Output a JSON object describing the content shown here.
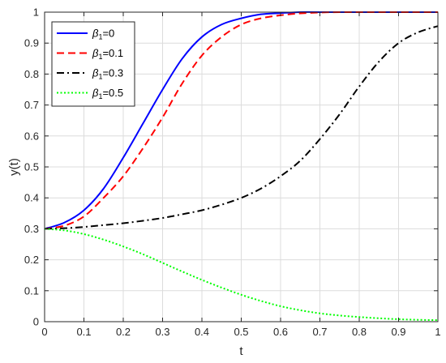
{
  "chart_data": {
    "type": "line",
    "title": "",
    "xlabel": "t",
    "ylabel": "y(t)",
    "xlim": [
      0,
      1
    ],
    "ylim": [
      0,
      1
    ],
    "xticks": [
      "0",
      "0.1",
      "0.2",
      "0.3",
      "0.4",
      "0.5",
      "0.6",
      "0.7",
      "0.8",
      "0.9",
      "1"
    ],
    "yticks": [
      "0",
      "0.1",
      "0.2",
      "0.3",
      "0.4",
      "0.5",
      "0.6",
      "0.7",
      "0.8",
      "0.9",
      "1"
    ],
    "grid": true,
    "legend_position": "top-left",
    "x": [
      0,
      0.05,
      0.1,
      0.15,
      0.2,
      0.25,
      0.3,
      0.35,
      0.4,
      0.45,
      0.5,
      0.55,
      0.6,
      0.65,
      0.7,
      0.75,
      0.8,
      0.85,
      0.9,
      0.95,
      1.0
    ],
    "series": [
      {
        "name_symbol": "β",
        "name_sub": "1",
        "name_value": "=0",
        "color": "#0000ff",
        "dash": "solid",
        "values": [
          0.3,
          0.32,
          0.36,
          0.43,
          0.53,
          0.64,
          0.75,
          0.85,
          0.92,
          0.96,
          0.98,
          0.993,
          0.997,
          1.0,
          1.0,
          1.0,
          1.0,
          1.0,
          1.0,
          1.0,
          1.0
        ]
      },
      {
        "name_symbol": "β",
        "name_sub": "1",
        "name_value": "=0.1",
        "color": "#ff0000",
        "dash": "dashed",
        "values": [
          0.3,
          0.31,
          0.34,
          0.4,
          0.47,
          0.56,
          0.66,
          0.77,
          0.86,
          0.92,
          0.96,
          0.98,
          0.99,
          0.996,
          0.999,
          1.0,
          1.0,
          1.0,
          1.0,
          1.0,
          1.0
        ]
      },
      {
        "name_symbol": "β",
        "name_sub": "1",
        "name_value": "=0.3",
        "color": "#000000",
        "dash": "dashdot",
        "values": [
          0.3,
          0.302,
          0.306,
          0.312,
          0.318,
          0.326,
          0.335,
          0.347,
          0.36,
          0.378,
          0.4,
          0.43,
          0.47,
          0.52,
          0.59,
          0.67,
          0.76,
          0.84,
          0.9,
          0.935,
          0.955
        ]
      },
      {
        "name_symbol": "β",
        "name_sub": "1",
        "name_value": "=0.5",
        "color": "#00ff00",
        "dash": "dotted",
        "values": [
          0.3,
          0.295,
          0.283,
          0.265,
          0.243,
          0.218,
          0.19,
          0.162,
          0.135,
          0.11,
          0.087,
          0.067,
          0.05,
          0.037,
          0.027,
          0.02,
          0.015,
          0.011,
          0.008,
          0.006,
          0.005
        ]
      }
    ]
  }
}
